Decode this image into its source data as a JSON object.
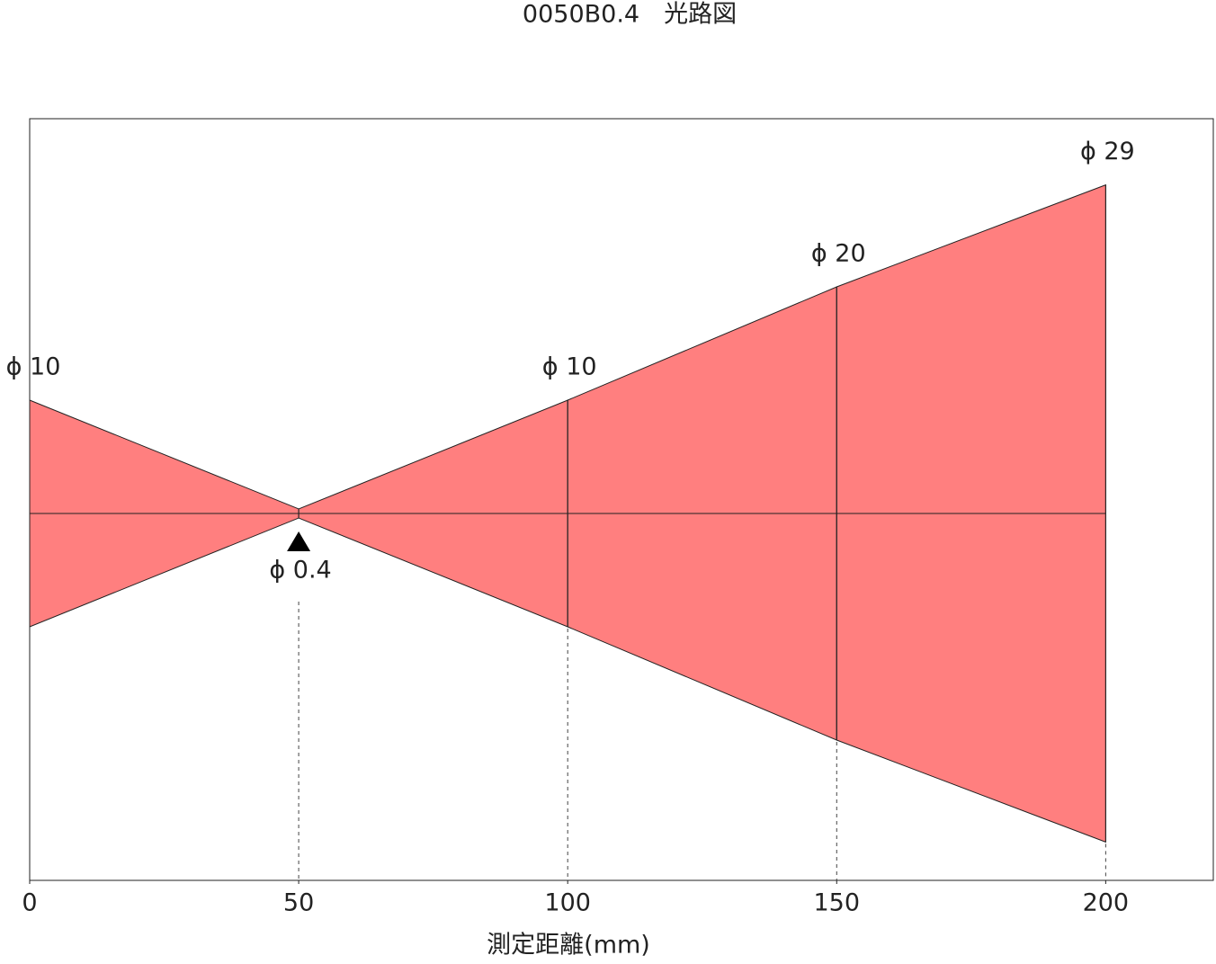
{
  "chart_data": {
    "type": "beam",
    "title": "0050B0.4　光路図",
    "x_label": "測定距離(mm)",
    "x": [
      0,
      50,
      100,
      150,
      200
    ],
    "values": [
      10,
      0.4,
      10,
      20,
      29
    ],
    "value_labels": [
      "ϕ 10",
      "ϕ 0.4",
      "ϕ 10",
      "ϕ 20",
      "ϕ 29"
    ],
    "color": "#ff7f7f",
    "xlim": [
      0,
      220
    ],
    "xticks": [
      0,
      50,
      100,
      150,
      200
    ]
  }
}
